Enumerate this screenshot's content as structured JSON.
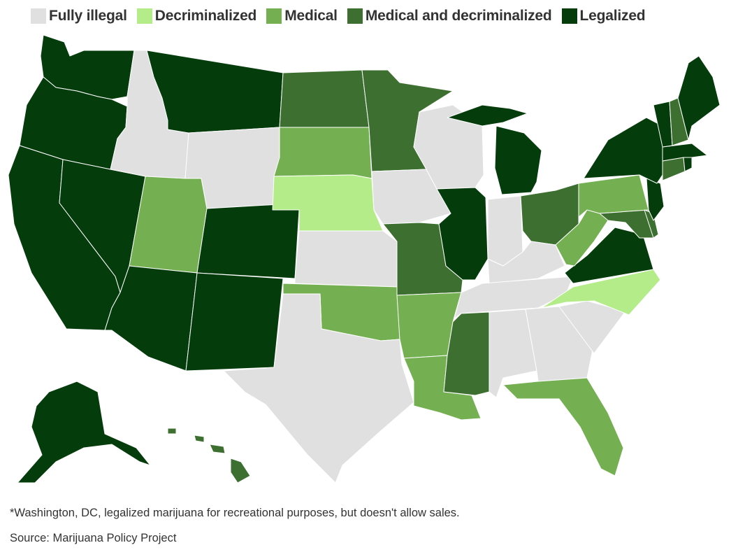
{
  "legend": [
    {
      "key": "fully_illegal",
      "label": "Fully illegal",
      "color": "#e0e0e0"
    },
    {
      "key": "decriminalized",
      "label": "Decriminalized",
      "color": "#b5ec8a"
    },
    {
      "key": "medical",
      "label": "Medical",
      "color": "#74b052"
    },
    {
      "key": "medical_decriminalized",
      "label": "Medical and decriminalized",
      "color": "#3d7030"
    },
    {
      "key": "legalized",
      "label": "Legalized",
      "color": "#043c0b"
    }
  ],
  "footnote": "*Washington, DC, legalized marijuana for recreational purposes, but doesn't allow sales.",
  "source": "Source: Marijuana Policy Project",
  "states": [
    {
      "state": "Washington",
      "status": "legalized"
    },
    {
      "state": "Oregon",
      "status": "legalized"
    },
    {
      "state": "California",
      "status": "legalized"
    },
    {
      "state": "Nevada",
      "status": "legalized"
    },
    {
      "state": "Idaho",
      "status": "fully_illegal"
    },
    {
      "state": "Montana",
      "status": "legalized"
    },
    {
      "state": "Wyoming",
      "status": "fully_illegal"
    },
    {
      "state": "Utah",
      "status": "medical"
    },
    {
      "state": "Arizona",
      "status": "legalized"
    },
    {
      "state": "Colorado",
      "status": "legalized"
    },
    {
      "state": "New Mexico",
      "status": "legalized"
    },
    {
      "state": "North Dakota",
      "status": "medical_decriminalized"
    },
    {
      "state": "South Dakota",
      "status": "medical"
    },
    {
      "state": "Nebraska",
      "status": "decriminalized"
    },
    {
      "state": "Kansas",
      "status": "fully_illegal"
    },
    {
      "state": "Oklahoma",
      "status": "medical"
    },
    {
      "state": "Texas",
      "status": "fully_illegal"
    },
    {
      "state": "Minnesota",
      "status": "medical_decriminalized"
    },
    {
      "state": "Iowa",
      "status": "fully_illegal"
    },
    {
      "state": "Missouri",
      "status": "medical_decriminalized"
    },
    {
      "state": "Arkansas",
      "status": "medical"
    },
    {
      "state": "Louisiana",
      "status": "medical"
    },
    {
      "state": "Wisconsin",
      "status": "fully_illegal"
    },
    {
      "state": "Illinois",
      "status": "legalized"
    },
    {
      "state": "Michigan",
      "status": "legalized"
    },
    {
      "state": "Indiana",
      "status": "fully_illegal"
    },
    {
      "state": "Ohio",
      "status": "medical_decriminalized"
    },
    {
      "state": "Kentucky",
      "status": "fully_illegal"
    },
    {
      "state": "Tennessee",
      "status": "fully_illegal"
    },
    {
      "state": "Mississippi",
      "status": "medical_decriminalized"
    },
    {
      "state": "Alabama",
      "status": "fully_illegal"
    },
    {
      "state": "Georgia",
      "status": "fully_illegal"
    },
    {
      "state": "Florida",
      "status": "medical"
    },
    {
      "state": "South Carolina",
      "status": "fully_illegal"
    },
    {
      "state": "North Carolina",
      "status": "decriminalized"
    },
    {
      "state": "Virginia",
      "status": "legalized"
    },
    {
      "state": "West Virginia",
      "status": "medical"
    },
    {
      "state": "Pennsylvania",
      "status": "medical"
    },
    {
      "state": "Maryland",
      "status": "medical_decriminalized"
    },
    {
      "state": "Delaware",
      "status": "medical_decriminalized"
    },
    {
      "state": "New Jersey",
      "status": "legalized"
    },
    {
      "state": "New York",
      "status": "legalized"
    },
    {
      "state": "Connecticut",
      "status": "medical_decriminalized"
    },
    {
      "state": "Rhode Island",
      "status": "legalized"
    },
    {
      "state": "Massachusetts",
      "status": "legalized"
    },
    {
      "state": "Vermont",
      "status": "legalized"
    },
    {
      "state": "New Hampshire",
      "status": "medical_decriminalized"
    },
    {
      "state": "Maine",
      "status": "legalized"
    },
    {
      "state": "Alaska",
      "status": "legalized"
    },
    {
      "state": "Hawaii",
      "status": "medical_decriminalized"
    }
  ]
}
